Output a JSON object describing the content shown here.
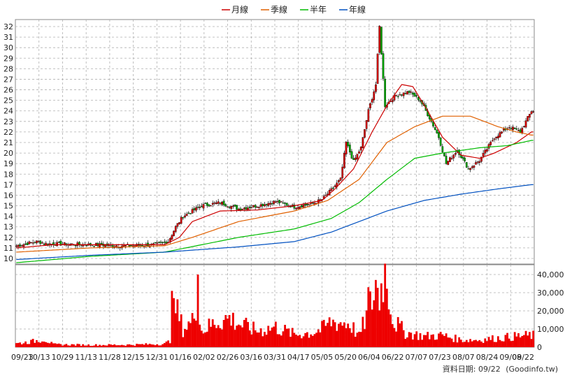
{
  "chart_data": [
    {
      "type": "candlestick",
      "legend": [
        {
          "name": "月線",
          "color": "#cc0000"
        },
        {
          "name": "季線",
          "color": "#e06000"
        },
        {
          "name": "半年",
          "color": "#00bb00"
        },
        {
          "name": "年線",
          "color": "#0050c0"
        }
      ],
      "legend_position": "top-center",
      "ylim": [
        10,
        32
      ],
      "yticks": [
        "10",
        "11",
        "12",
        "13",
        "14",
        "15",
        "16",
        "17",
        "18",
        "19",
        "20",
        "21",
        "22",
        "23",
        "24",
        "25",
        "26",
        "27",
        "28",
        "29",
        "30",
        "31",
        "32"
      ],
      "grid": true,
      "x_dates": [
        "09/23",
        "10/13",
        "10/29",
        "11/13",
        "11/28",
        "12/15",
        "12/31",
        "01/16",
        "02/02",
        "02/26",
        "03/16",
        "03/31",
        "04/17",
        "05/05",
        "05/20",
        "06/04",
        "06/22",
        "07/07",
        "07/23",
        "08/07",
        "08/24",
        "09/08",
        "09/22"
      ],
      "close_path": [
        [
          0,
          11.2
        ],
        [
          8,
          11.5
        ],
        [
          12,
          11.6
        ],
        [
          16,
          11.4
        ],
        [
          40,
          11.3
        ],
        [
          60,
          11.2
        ],
        [
          75,
          11.3
        ],
        [
          82,
          11.6
        ],
        [
          86,
          13.0
        ],
        [
          90,
          14.0
        ],
        [
          100,
          15.0
        ],
        [
          110,
          15.3
        ],
        [
          120,
          14.7
        ],
        [
          130,
          15.0
        ],
        [
          140,
          15.4
        ],
        [
          150,
          14.9
        ],
        [
          160,
          15.2
        ],
        [
          165,
          15.6
        ],
        [
          170,
          16.5
        ],
        [
          175,
          17.5
        ],
        [
          178,
          21.0
        ],
        [
          182,
          19.2
        ],
        [
          186,
          20.5
        ],
        [
          190,
          24.0
        ],
        [
          194,
          26.5
        ],
        [
          196,
          32.0
        ],
        [
          199,
          24.5
        ],
        [
          205,
          25.5
        ],
        [
          212,
          25.8
        ],
        [
          218,
          25.0
        ],
        [
          224,
          23.0
        ],
        [
          228,
          21.5
        ],
        [
          232,
          19.0
        ],
        [
          238,
          20.3
        ],
        [
          244,
          18.5
        ],
        [
          250,
          19.3
        ],
        [
          258,
          21.5
        ],
        [
          266,
          22.5
        ],
        [
          272,
          22.0
        ],
        [
          278,
          24.0
        ]
      ],
      "ma_month": [
        [
          0,
          11.0
        ],
        [
          20,
          11.3
        ],
        [
          80,
          11.3
        ],
        [
          88,
          12.0
        ],
        [
          95,
          13.5
        ],
        [
          110,
          14.5
        ],
        [
          130,
          14.6
        ],
        [
          150,
          15.0
        ],
        [
          165,
          15.5
        ],
        [
          172,
          16.6
        ],
        [
          182,
          18.5
        ],
        [
          192,
          22.0
        ],
        [
          200,
          24.5
        ],
        [
          208,
          26.5
        ],
        [
          214,
          26.3
        ],
        [
          222,
          24.0
        ],
        [
          230,
          21.5
        ],
        [
          240,
          19.8
        ],
        [
          250,
          19.5
        ],
        [
          258,
          20.0
        ],
        [
          270,
          21.0
        ],
        [
          278,
          22.0
        ]
      ],
      "ma_quarter": [
        [
          0,
          10.6
        ],
        [
          40,
          11.0
        ],
        [
          80,
          11.2
        ],
        [
          95,
          12.0
        ],
        [
          120,
          13.5
        ],
        [
          150,
          14.5
        ],
        [
          168,
          15.5
        ],
        [
          185,
          17.5
        ],
        [
          200,
          21.0
        ],
        [
          215,
          22.5
        ],
        [
          230,
          23.5
        ],
        [
          245,
          23.5
        ],
        [
          260,
          22.5
        ],
        [
          270,
          22.0
        ],
        [
          278,
          21.7
        ]
      ],
      "ma_half": [
        [
          0,
          9.6
        ],
        [
          40,
          10.2
        ],
        [
          80,
          10.6
        ],
        [
          120,
          12.0
        ],
        [
          150,
          12.8
        ],
        [
          170,
          13.8
        ],
        [
          185,
          15.3
        ],
        [
          200,
          17.5
        ],
        [
          215,
          19.5
        ],
        [
          230,
          20.0
        ],
        [
          250,
          20.5
        ],
        [
          265,
          20.7
        ],
        [
          278,
          21.2
        ]
      ],
      "ma_year": [
        [
          0,
          9.9
        ],
        [
          40,
          10.3
        ],
        [
          80,
          10.6
        ],
        [
          120,
          11.1
        ],
        [
          150,
          11.6
        ],
        [
          170,
          12.5
        ],
        [
          185,
          13.5
        ],
        [
          200,
          14.5
        ],
        [
          220,
          15.5
        ],
        [
          240,
          16.1
        ],
        [
          260,
          16.6
        ],
        [
          278,
          17.0
        ]
      ]
    },
    {
      "type": "bar",
      "series_name": "volume",
      "yticks": [
        "0",
        "10,000",
        "20,000",
        "30,000",
        "40,000"
      ],
      "ylim": [
        0,
        47000
      ],
      "profile": [
        [
          0,
          2000
        ],
        [
          8,
          3000
        ],
        [
          15,
          4500
        ],
        [
          20,
          1500
        ],
        [
          40,
          1200
        ],
        [
          60,
          1300
        ],
        [
          80,
          1800
        ],
        [
          84,
          4000
        ],
        [
          86,
          22000
        ],
        [
          90,
          10000
        ],
        [
          95,
          14000
        ],
        [
          97,
          24000
        ],
        [
          100,
          9000
        ],
        [
          108,
          14000
        ],
        [
          115,
          16000
        ],
        [
          122,
          12000
        ],
        [
          130,
          9000
        ],
        [
          140,
          11000
        ],
        [
          150,
          7000
        ],
        [
          160,
          8000
        ],
        [
          165,
          10000
        ],
        [
          170,
          14000
        ],
        [
          180,
          13000
        ],
        [
          185,
          6000
        ],
        [
          190,
          20000
        ],
        [
          194,
          32000
        ],
        [
          196,
          28000
        ],
        [
          199,
          45000
        ],
        [
          203,
          15000
        ],
        [
          210,
          8000
        ],
        [
          220,
          6000
        ],
        [
          230,
          6500
        ],
        [
          240,
          4000
        ],
        [
          250,
          4000
        ],
        [
          260,
          5000
        ],
        [
          270,
          6000
        ],
        [
          278,
          6500
        ]
      ],
      "spikes": [
        [
          84,
          31000
        ],
        [
          85,
          27000
        ],
        [
          98,
          40000
        ],
        [
          190,
          33000
        ],
        [
          194,
          37000
        ],
        [
          199,
          46000
        ],
        [
          202,
          18000
        ]
      ]
    }
  ],
  "footer": {
    "source_label": "資料日期: 09/22",
    "site": "(Goodinfo.tw)"
  }
}
